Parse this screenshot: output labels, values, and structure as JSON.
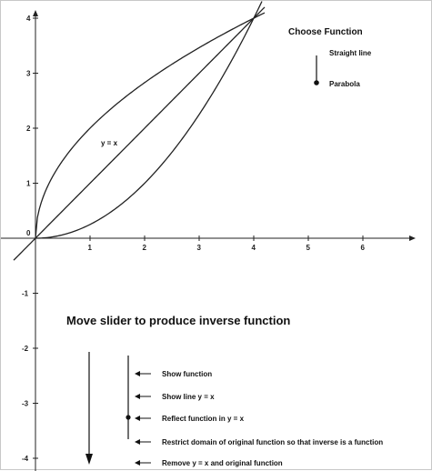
{
  "chart_data": {
    "type": "line",
    "x_ticks": [
      "1",
      "2",
      "3",
      "4",
      "5",
      "6"
    ],
    "y_ticks": [
      "4",
      "3",
      "2",
      "1",
      "0",
      "-1",
      "-2",
      "-3",
      "-4"
    ],
    "xlim": [
      -0.4,
      7.3
    ],
    "ylim": [
      -4.3,
      4.15
    ],
    "series": [
      {
        "name": "y = x",
        "type": "function",
        "expr": "x",
        "x": [
          -0.4,
          4.2
        ],
        "y": [
          -0.4,
          4.2
        ]
      },
      {
        "name": "",
        "type": "function",
        "expr": "x^2/4",
        "x": [
          0,
          4.15
        ],
        "y": [
          0,
          4.31
        ]
      },
      {
        "name": "",
        "type": "function",
        "expr": "2*sqrt(x)",
        "x": [
          0,
          4.2
        ],
        "y": [
          0,
          4.1
        ]
      }
    ],
    "curve_label": "y = x",
    "grid": false
  },
  "choose_function": {
    "title": "Choose Function",
    "option_top": "Straight line",
    "option_bottom": "Parabola",
    "selected": "Parabola"
  },
  "slider_panel": {
    "title": "Move slider to produce inverse function",
    "steps": [
      "Show function",
      "Show line y = x",
      "Reflect function in y = x",
      "Restrict domain of original function so that inverse is a function",
      "Remove y = x and original function"
    ],
    "selected_step": 4
  }
}
